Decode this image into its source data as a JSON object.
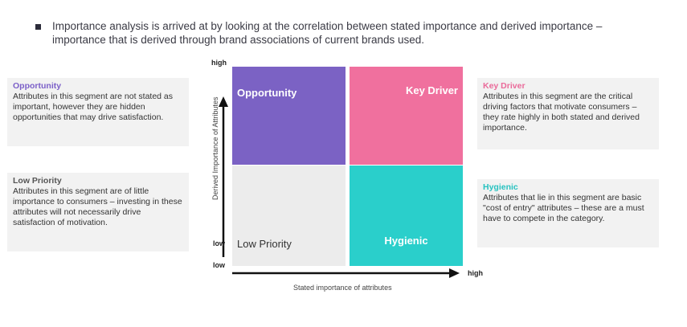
{
  "intro": {
    "text": "Importance analysis is arrived at by looking at the correlation between stated importance and derived importance – importance that is derived through brand associations of current brands used."
  },
  "notes": {
    "opportunity": {
      "title": "Opportunity",
      "body": "Attributes in this segment are not stated as important, however they are hidden opportunities that may drive satisfaction."
    },
    "low_priority": {
      "title": "Low Priority",
      "body": "Attributes in this segment are of little importance to consumers – investing in these attributes will not necessarily drive satisfaction of motivation."
    },
    "key_driver": {
      "title": "Key Driver",
      "body": "Attributes in this segment are the critical driving factors that motivate consumers – they rate highly in both stated and derived importance."
    },
    "hygienic": {
      "title": "Hygienic",
      "body": "Attributes that lie in this segment are basic \"cost of entry\" attributes – these are a must have to compete in the category."
    }
  },
  "quadrants": {
    "opportunity": "Opportunity",
    "key_driver": "Key Driver",
    "low_priority": "Low Priority",
    "hygienic": "Hygienic"
  },
  "axes": {
    "y_high": "high",
    "y_low": "low",
    "x_low": "low",
    "x_high": "high",
    "y_label": "Derived Importance of Attributes",
    "x_label": "Stated importance of attributes"
  },
  "colors": {
    "opportunity": "#7b62c4",
    "key_driver": "#f0709e",
    "low_priority": "#ececec",
    "hygienic": "#2acfcb"
  }
}
